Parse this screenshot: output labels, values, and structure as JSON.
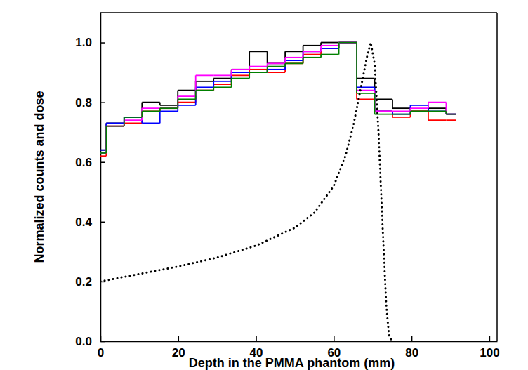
{
  "chart_data": {
    "type": "histogram",
    "x_label": "Depth in the PMMA phantom (mm)",
    "y_label": "Normalized counts and dose",
    "xlim": [
      0,
      102
    ],
    "ylim": [
      0,
      1.1
    ],
    "xticks": [
      0,
      20,
      40,
      60,
      80,
      100
    ],
    "yticks": [
      {
        "value": 0,
        "label": "0.0"
      },
      {
        "value": 0.2,
        "label": "0.2"
      },
      {
        "value": 0.4,
        "label": "0.4"
      },
      {
        "value": 0.6,
        "label": "0.6"
      },
      {
        "value": 0.8,
        "label": "0.8"
      },
      {
        "value": 1.0,
        "label": "1.0"
      }
    ],
    "bins": [
      0,
      1.5,
      6.1,
      10.7,
      15.3,
      19.9,
      24.5,
      29.1,
      33.7,
      38.3,
      42.9,
      47.5,
      52.1,
      56.7,
      61.3,
      65.9,
      70.5,
      75.1,
      79.7,
      84.3,
      88.9,
      91.5
    ],
    "series": [
      {
        "color": "#000000",
        "values": [
          0.64,
          0.73,
          0.75,
          0.8,
          0.79,
          0.84,
          0.87,
          0.88,
          0.91,
          0.97,
          0.93,
          0.97,
          0.99,
          1.0,
          1.0,
          0.88,
          0.81,
          0.78,
          0.77,
          0.78,
          0.76
        ]
      },
      {
        "color": "#ff0000",
        "values": [
          0.62,
          0.72,
          0.73,
          0.77,
          0.78,
          0.8,
          0.84,
          0.86,
          0.89,
          0.91,
          0.9,
          0.93,
          0.96,
          0.98,
          1.0,
          0.81,
          0.77,
          0.75,
          0.77,
          0.74,
          0.74
        ]
      },
      {
        "color": "#0000ff",
        "values": [
          0.64,
          0.73,
          0.75,
          0.73,
          0.77,
          0.79,
          0.85,
          0.87,
          0.9,
          0.9,
          0.91,
          0.94,
          0.97,
          0.98,
          1.0,
          0.85,
          0.77,
          0.76,
          0.79,
          0.77,
          0.76
        ]
      },
      {
        "color": "#ff00ff",
        "values": [
          0.63,
          0.72,
          0.74,
          0.78,
          0.78,
          0.82,
          0.89,
          0.89,
          0.91,
          0.92,
          0.93,
          0.95,
          0.97,
          0.99,
          1.0,
          0.84,
          0.77,
          0.77,
          0.78,
          0.8,
          0.76
        ]
      },
      {
        "color": "#008000",
        "values": [
          0.63,
          0.72,
          0.75,
          0.77,
          0.78,
          0.81,
          0.84,
          0.85,
          0.88,
          0.9,
          0.92,
          0.93,
          0.95,
          0.96,
          1.0,
          0.83,
          0.76,
          0.76,
          0.77,
          0.77,
          0.76
        ]
      },
      {
        "type": "line",
        "line_style": "dotted",
        "color": "#000000",
        "x": [
          0,
          10,
          20,
          30,
          40,
          50,
          55,
          60,
          63,
          65,
          67,
          68.5,
          69.5,
          70.5,
          71.5,
          72.5,
          73.5,
          74.2,
          75
        ],
        "values": [
          0.2,
          0.225,
          0.25,
          0.28,
          0.32,
          0.38,
          0.43,
          0.52,
          0.62,
          0.72,
          0.85,
          0.95,
          1.0,
          0.93,
          0.7,
          0.4,
          0.12,
          0.02,
          0
        ]
      }
    ]
  }
}
